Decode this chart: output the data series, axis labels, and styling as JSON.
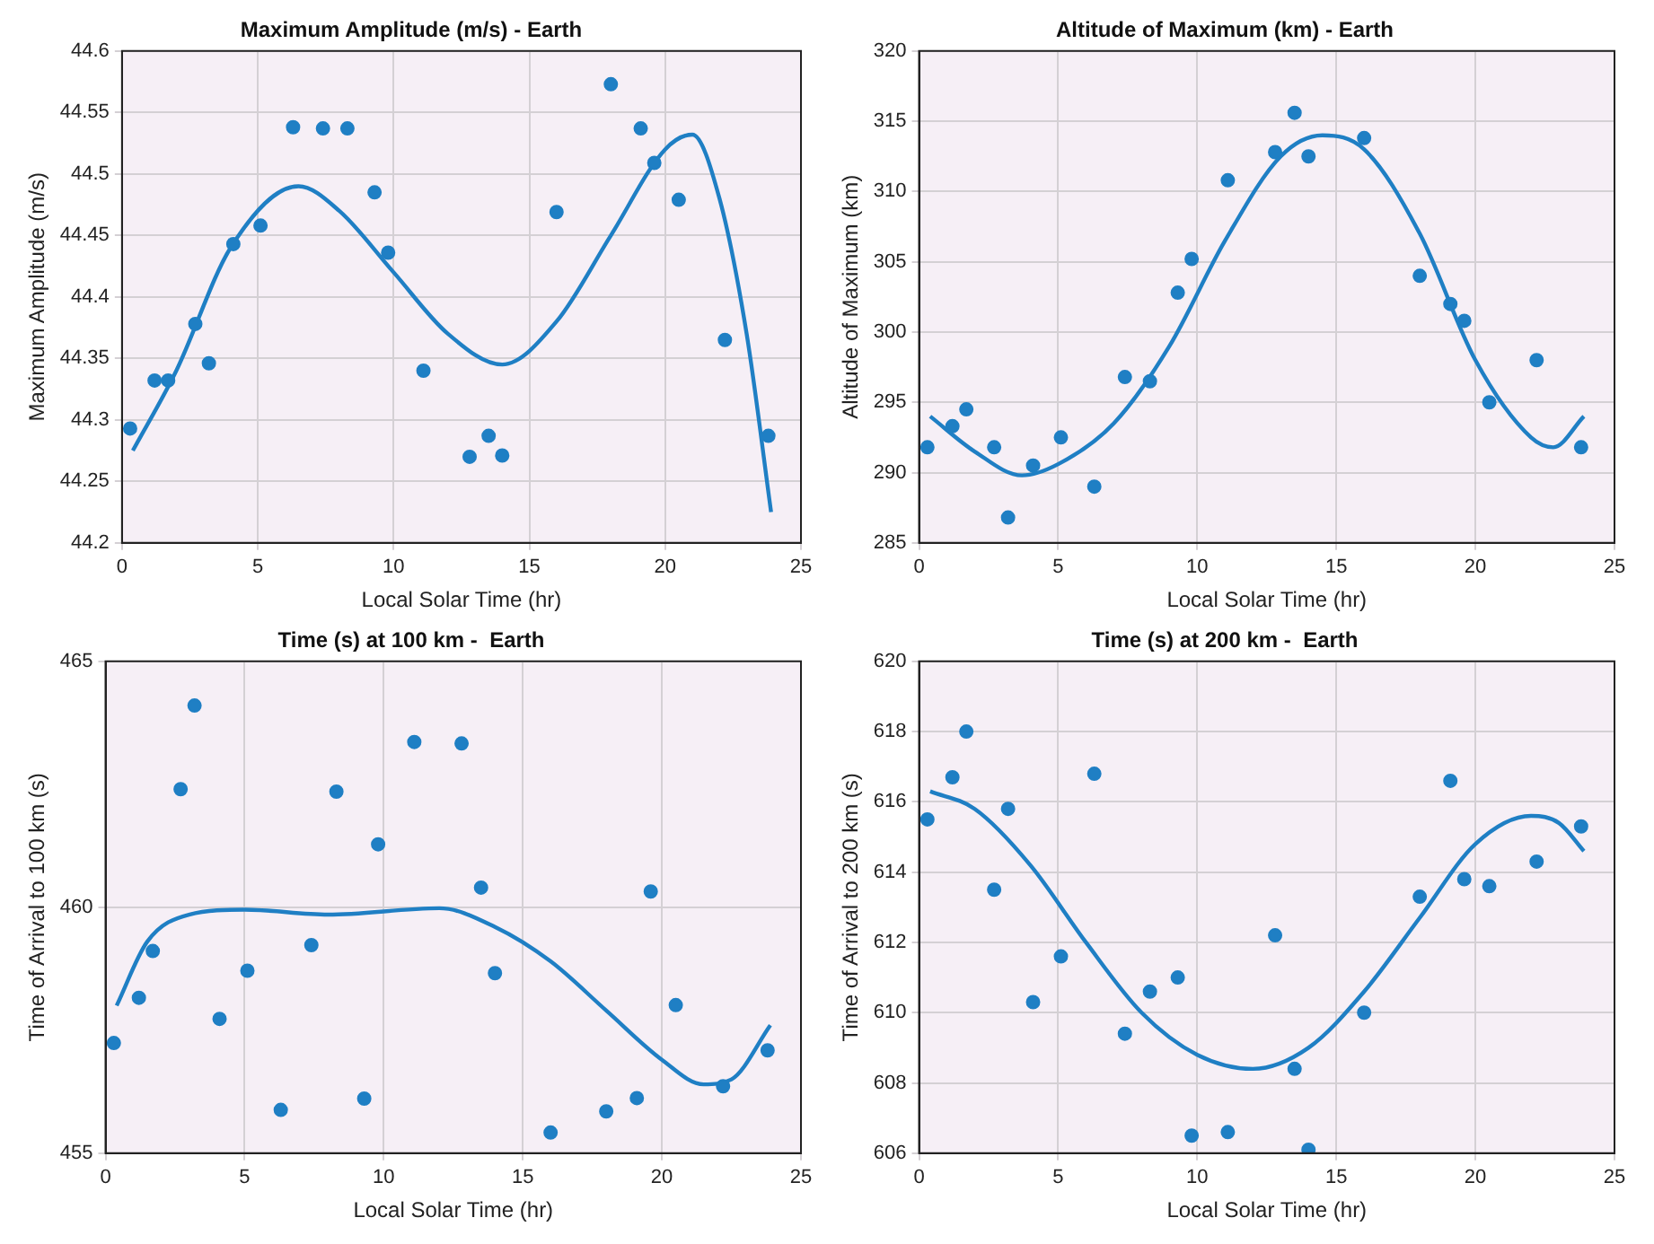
{
  "chart_data": [
    {
      "type": "scatter",
      "title": "Maximum Amplitude (m/s) - Earth",
      "xlabel": "Local Solar Time (hr)",
      "ylabel": "Maximum Amplitude (m/s)",
      "xlim": [
        0,
        25
      ],
      "xticks": [
        0,
        5,
        10,
        15,
        20,
        25
      ],
      "ylim": [
        44.2,
        44.6
      ],
      "yticks": [
        44.2,
        44.25,
        44.3,
        44.35,
        44.4,
        44.45,
        44.5,
        44.55,
        44.6
      ],
      "grid": true,
      "legend": false,
      "series": [
        {
          "type": "scatter",
          "marker": "circle",
          "color": "#1f7fc4",
          "x": [
            0.3,
            1.2,
            1.7,
            2.7,
            3.2,
            4.1,
            5.1,
            6.3,
            7.4,
            8.3,
            9.3,
            9.8,
            11.1,
            12.8,
            13.5,
            14.0,
            16.0,
            18.0,
            19.1,
            19.6,
            20.5,
            22.2,
            23.8
          ],
          "values": [
            44.293,
            44.332,
            44.332,
            44.378,
            44.346,
            44.443,
            44.458,
            44.538,
            44.537,
            44.537,
            44.485,
            44.436,
            44.34,
            44.27,
            44.287,
            44.271,
            44.469,
            44.573,
            44.537,
            44.509,
            44.479,
            44.365,
            44.287
          ]
        },
        {
          "type": "line",
          "marker": "none",
          "color": "#1f7fc4",
          "x": [
            0.4,
            2,
            4,
            6.5,
            8,
            10,
            12,
            14,
            16,
            18,
            20,
            21,
            22,
            23,
            23.9
          ],
          "values": [
            44.275,
            44.34,
            44.44,
            44.49,
            44.47,
            44.42,
            44.37,
            44.345,
            44.38,
            44.45,
            44.52,
            44.532,
            44.48,
            44.37,
            44.225
          ]
        }
      ]
    },
    {
      "type": "scatter",
      "title": "Altitude of Maximum (km) - Earth",
      "xlabel": "Local Solar Time (hr)",
      "ylabel": "Altitude of Maximum (km)",
      "xlim": [
        0,
        25
      ],
      "xticks": [
        0,
        5,
        10,
        15,
        20,
        25
      ],
      "ylim": [
        285,
        320
      ],
      "yticks": [
        285,
        290,
        295,
        300,
        305,
        310,
        315,
        320
      ],
      "grid": true,
      "legend": false,
      "series": [
        {
          "type": "scatter",
          "marker": "circle",
          "color": "#1f7fc4",
          "x": [
            0.3,
            1.2,
            1.7,
            2.7,
            3.2,
            4.1,
            5.1,
            6.3,
            7.4,
            8.3,
            9.3,
            9.8,
            11.1,
            12.8,
            13.5,
            14.0,
            16.0,
            18.0,
            19.1,
            19.6,
            20.5,
            22.2,
            23.8
          ],
          "values": [
            291.8,
            293.3,
            294.5,
            291.8,
            286.8,
            290.5,
            292.5,
            289.0,
            296.8,
            296.5,
            302.8,
            305.2,
            310.8,
            312.8,
            315.6,
            312.5,
            313.8,
            304.0,
            302.0,
            300.8,
            295.0,
            298.0,
            291.8
          ]
        },
        {
          "type": "line",
          "marker": "none",
          "color": "#1f7fc4",
          "x": [
            0.4,
            2,
            3.7,
            5,
            7,
            9,
            11,
            13,
            14.5,
            16,
            18,
            20,
            22,
            22.8,
            23.9
          ],
          "values": [
            294,
            291.5,
            289.8,
            290.6,
            293.5,
            299,
            306.5,
            312.5,
            314,
            313,
            307,
            298,
            292.5,
            291.8,
            294
          ]
        }
      ]
    },
    {
      "type": "scatter",
      "title": "Time (s) at 100 km -  Earth",
      "xlabel": "Local Solar Time (hr)",
      "ylabel": "Time of Arrival to 100 km (s)",
      "xlim": [
        0,
        25
      ],
      "xticks": [
        0,
        5,
        10,
        15,
        20,
        25
      ],
      "ylim": [
        455,
        465
      ],
      "yticks": [
        455,
        460,
        465
      ],
      "grid": true,
      "legend": false,
      "series": [
        {
          "type": "scatter",
          "marker": "circle",
          "color": "#1f7fc4",
          "x": [
            0.3,
            1.2,
            1.7,
            2.7,
            3.2,
            4.1,
            5.1,
            6.3,
            7.4,
            8.3,
            9.3,
            9.8,
            11.1,
            12.8,
            13.5,
            14.0,
            16.0,
            18.0,
            19.1,
            19.6,
            20.5,
            22.2,
            23.8
          ],
          "values": [
            457.24,
            458.16,
            459.11,
            462.4,
            464.1,
            457.73,
            458.71,
            455.88,
            459.23,
            462.35,
            456.11,
            461.28,
            463.36,
            463.33,
            460.4,
            458.66,
            455.42,
            455.85,
            456.12,
            460.32,
            458.01,
            456.36,
            457.09
          ]
        },
        {
          "type": "line",
          "marker": "none",
          "color": "#1f7fc4",
          "x": [
            0.4,
            1.5,
            3,
            5,
            8,
            12,
            14,
            16,
            18,
            20,
            21.5,
            22.5,
            23.9
          ],
          "values": [
            458.0,
            459.3,
            459.85,
            459.95,
            459.85,
            459.98,
            459.6,
            458.9,
            457.9,
            456.9,
            456.4,
            456.5,
            457.6
          ]
        }
      ]
    },
    {
      "type": "scatter",
      "title": "Time (s) at 200 km -  Earth",
      "xlabel": "Local Solar Time (hr)",
      "ylabel": "Time of Arrival to 200 km (s)",
      "xlim": [
        0,
        25
      ],
      "xticks": [
        0,
        5,
        10,
        15,
        20,
        25
      ],
      "ylim": [
        606,
        620
      ],
      "yticks": [
        606,
        608,
        610,
        612,
        614,
        616,
        618,
        620
      ],
      "grid": true,
      "legend": false,
      "series": [
        {
          "type": "scatter",
          "marker": "circle",
          "color": "#1f7fc4",
          "x": [
            0.3,
            1.2,
            1.7,
            2.7,
            3.2,
            4.1,
            5.1,
            6.3,
            7.4,
            8.3,
            9.3,
            9.8,
            11.1,
            12.8,
            13.5,
            14.0,
            16.0,
            18.0,
            19.1,
            19.6,
            20.5,
            22.2,
            23.8
          ],
          "values": [
            615.5,
            616.7,
            618.0,
            613.5,
            615.8,
            610.3,
            611.6,
            616.8,
            609.4,
            610.6,
            611.0,
            606.5,
            606.6,
            612.2,
            608.4,
            606.1,
            610.0,
            613.3,
            616.6,
            613.8,
            613.6,
            614.3,
            615.3
          ]
        },
        {
          "type": "line",
          "marker": "none",
          "color": "#1f7fc4",
          "x": [
            0.4,
            2,
            4,
            6,
            8,
            10,
            12,
            14,
            16,
            18,
            20,
            22,
            23,
            23.9
          ],
          "values": [
            616.3,
            615.8,
            614.2,
            612,
            610,
            608.8,
            608.4,
            609,
            610.6,
            612.7,
            614.8,
            615.6,
            615.4,
            614.6
          ]
        }
      ]
    }
  ]
}
